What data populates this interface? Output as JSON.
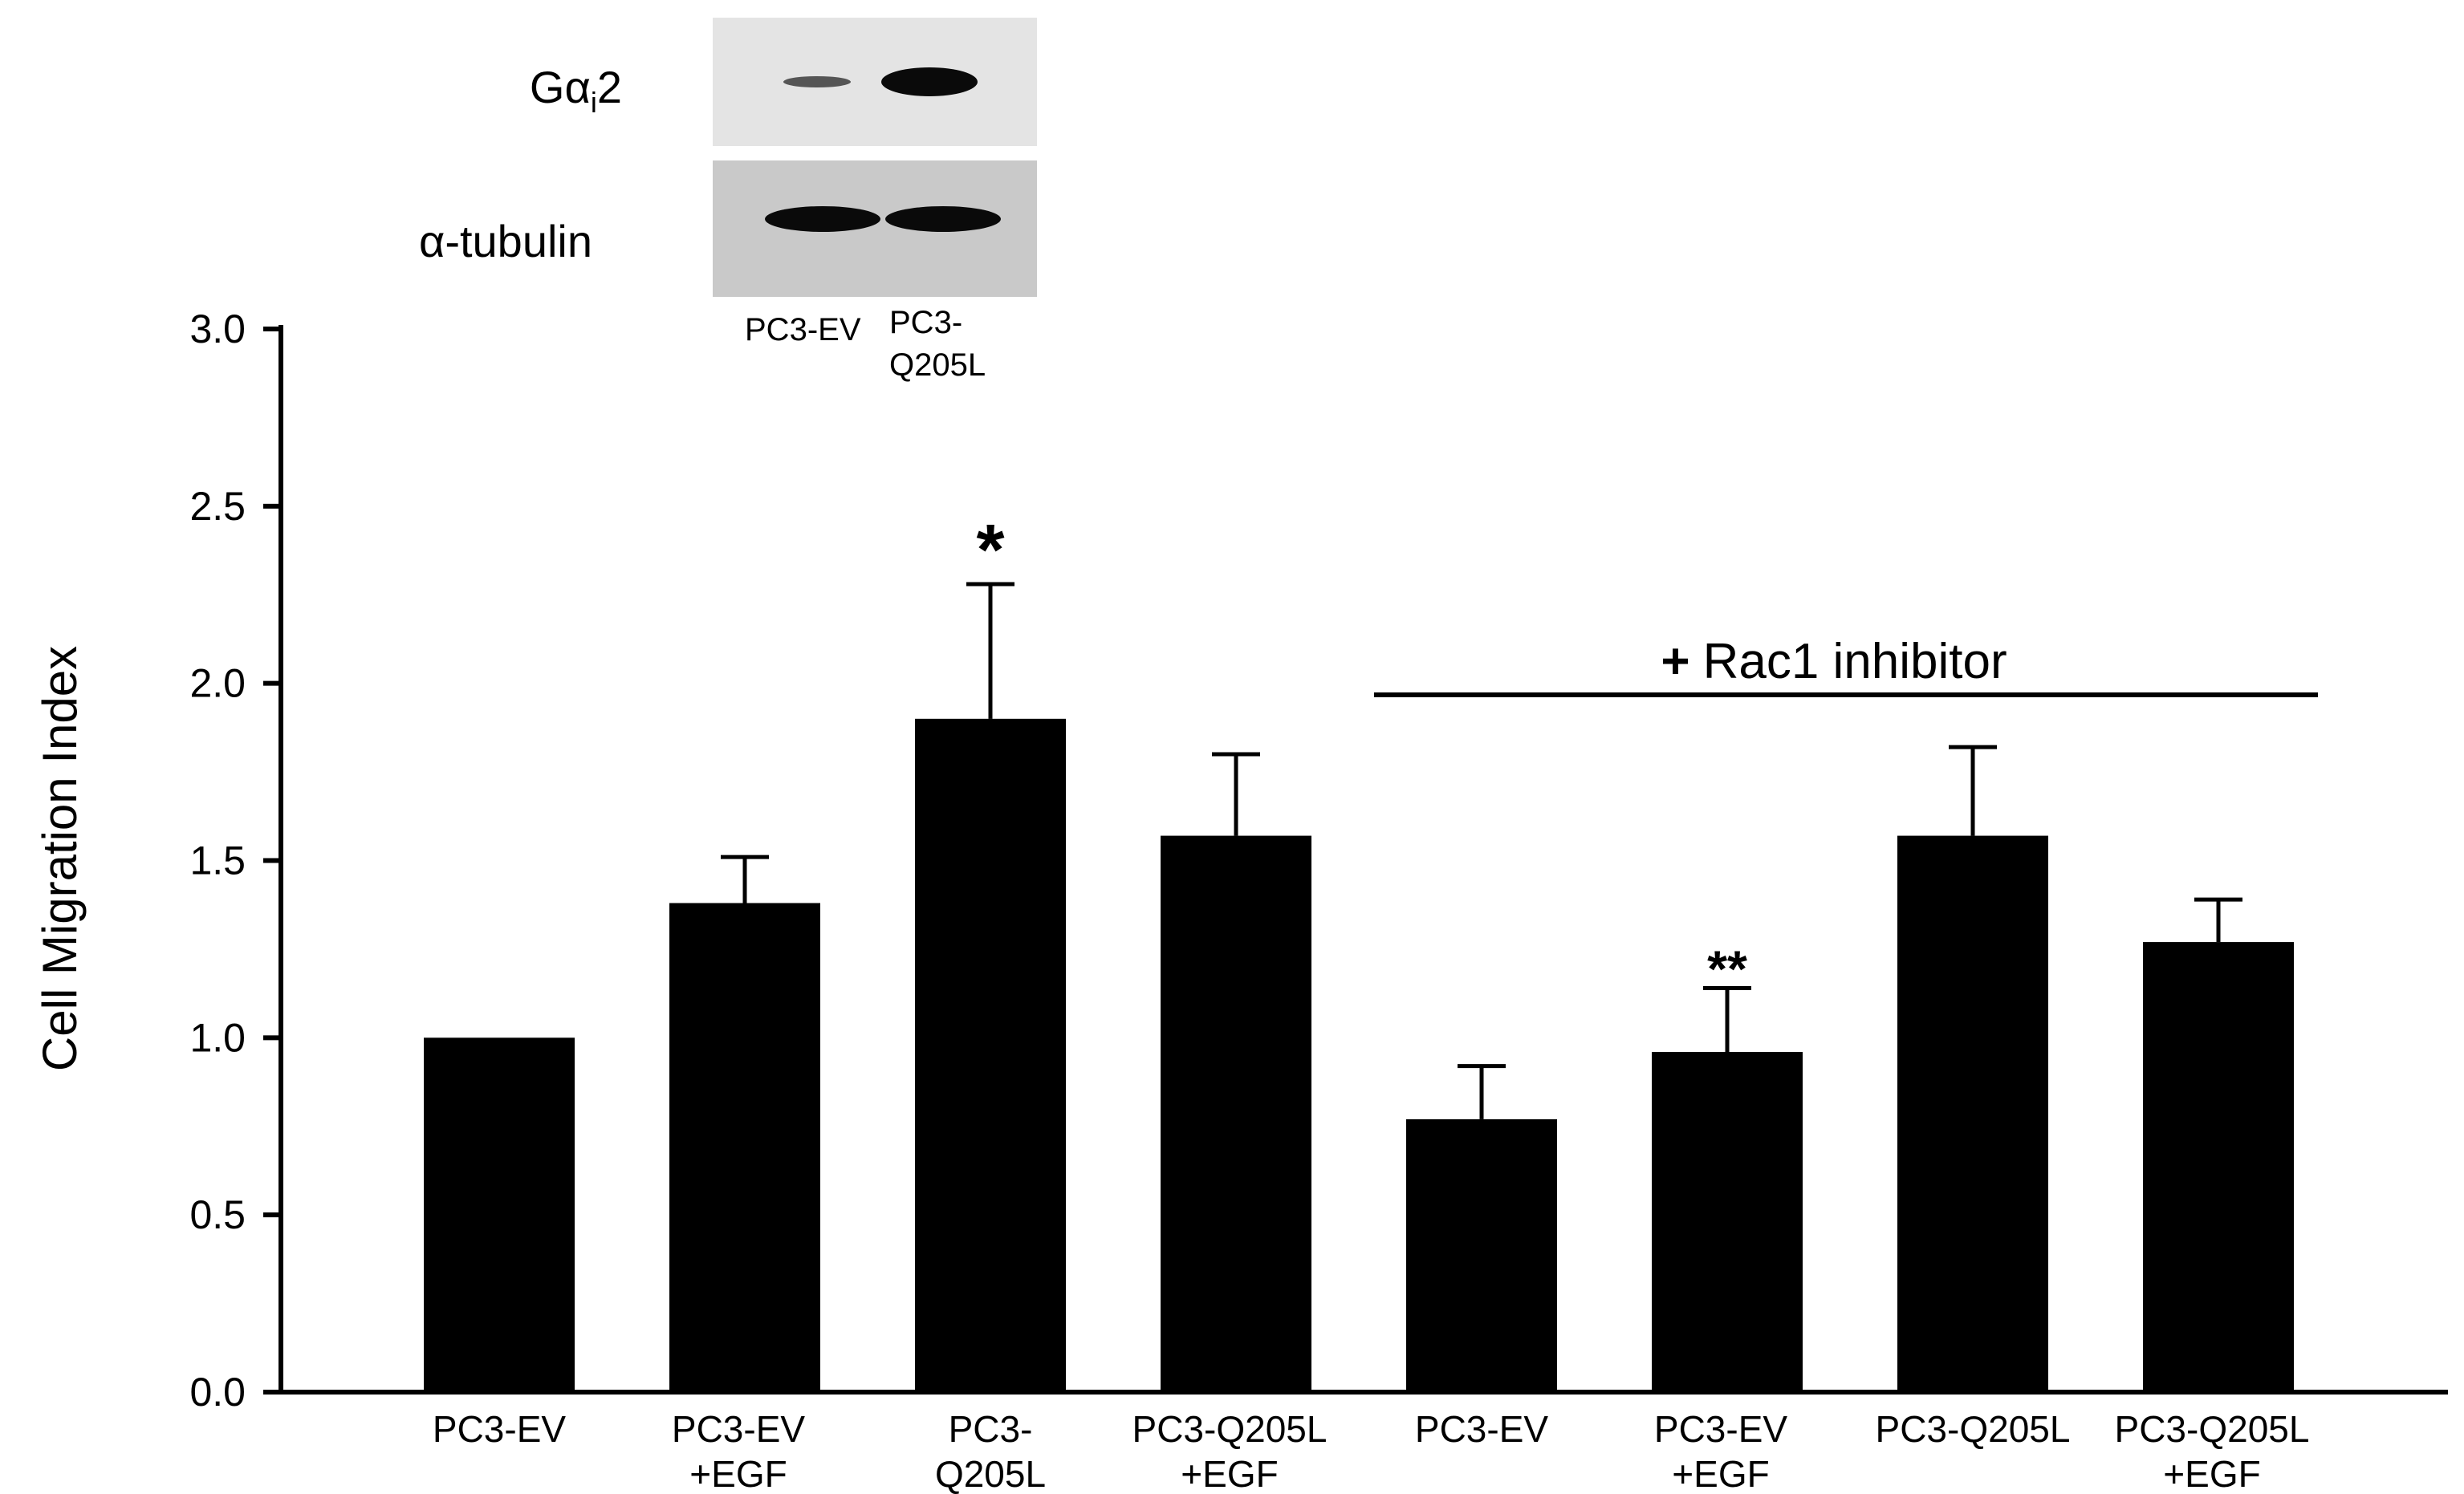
{
  "chart_data": {
    "type": "bar",
    "ylabel": "Cell Migration Index",
    "ylim": [
      0,
      3.0
    ],
    "yticks": [
      "0.0",
      "0.5",
      "1.0",
      "1.5",
      "2.0",
      "2.5",
      "3.0"
    ],
    "grid": false,
    "categories": [
      [
        "PC3-EV",
        ""
      ],
      [
        "PC3-EV",
        "+EGF"
      ],
      [
        "PC3-",
        "Q205L"
      ],
      [
        "PC3-Q205L",
        "+EGF"
      ],
      [
        "PC3-EV",
        ""
      ],
      [
        "PC3-EV",
        "+EGF"
      ],
      [
        "PC3-Q205L",
        ""
      ],
      [
        "PC3-Q205L",
        "+EGF"
      ]
    ],
    "values": [
      1.0,
      1.38,
      1.9,
      1.57,
      0.77,
      0.96,
      1.57,
      1.27
    ],
    "errors": [
      0,
      0.13,
      0.38,
      0.23,
      0.15,
      0.18,
      0.25,
      0.12
    ],
    "significance": [
      "",
      "",
      "*",
      "",
      "",
      "**",
      "",
      ""
    ],
    "bar_color": "#000000",
    "annotation": {
      "text": "Rac1 inhibitor",
      "symbol": "+",
      "spans_bars": [
        4,
        7
      ]
    }
  },
  "blot": {
    "rows": [
      {
        "label_main": "Gα",
        "label_sub": "i",
        "label_tail": "2"
      },
      {
        "label_main": "α-tubulin",
        "label_sub": "",
        "label_tail": ""
      }
    ],
    "lanes": [
      [
        "PC3-EV"
      ],
      [
        "PC3-",
        "Q205L"
      ]
    ]
  }
}
